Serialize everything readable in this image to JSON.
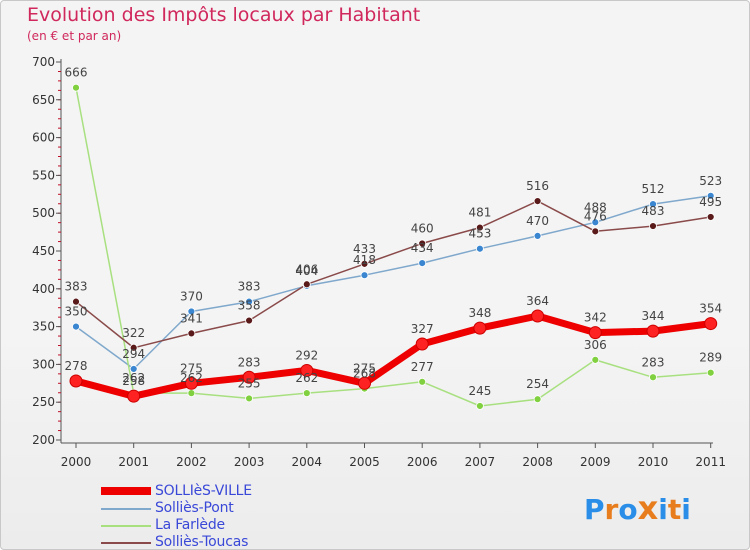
{
  "header": {
    "title": "Evolution des Impôts locaux par Habitant",
    "subtitle": "(en € et par an)"
  },
  "logo": {
    "text": "Proxiti"
  },
  "chart_data": {
    "type": "line",
    "title": "Evolution des Impôts locaux par Habitant",
    "subtitle": "(en € et par an)",
    "xlabel": "",
    "ylabel": "",
    "categories": [
      "2000",
      "2001",
      "2002",
      "2003",
      "2004",
      "2005",
      "2006",
      "2007",
      "2008",
      "2009",
      "2010",
      "2011"
    ],
    "ylim": [
      200,
      700
    ],
    "yticks": [
      "200",
      "250",
      "300",
      "350",
      "400",
      "450",
      "500",
      "550",
      "600",
      "650",
      "700"
    ],
    "grid": false,
    "legend_position": "bottom-left",
    "series": [
      {
        "name": "SOLLIèS-VILLE",
        "color": "#ee0000",
        "marker": "#ff2222",
        "width": 7,
        "radius": 6,
        "emphasis": true,
        "values": [
          278,
          258,
          275,
          283,
          292,
          275,
          327,
          348,
          364,
          342,
          344,
          354
        ],
        "labels": [
          "278",
          "258",
          "275",
          "283",
          "292",
          "275",
          "327",
          "348",
          "364",
          "342",
          "344",
          "354"
        ]
      },
      {
        "name": "Solliès-Pont",
        "color": "#7fa8cc",
        "marker": "#3a86d0",
        "width": 1.5,
        "radius": 3.5,
        "emphasis": false,
        "values": [
          350,
          294,
          370,
          383,
          404,
          418,
          434,
          453,
          470,
          488,
          512,
          523
        ],
        "labels": [
          "350",
          "294",
          "370",
          "383",
          "404",
          "418",
          "434",
          "453",
          "470",
          "488",
          "512",
          "523"
        ]
      },
      {
        "name": "La Farlède",
        "color": "#a8e080",
        "marker": "#80d040",
        "width": 1.5,
        "radius": 3.5,
        "emphasis": false,
        "values": [
          666,
          262,
          262,
          255,
          262,
          268,
          277,
          245,
          254,
          306,
          283,
          289
        ],
        "labels": [
          "666",
          "262",
          "262",
          "255",
          "262",
          "268",
          "277",
          "245",
          "254",
          "306",
          "283",
          "289"
        ]
      },
      {
        "name": "Solliès-Toucas",
        "color": "#8a4a4a",
        "marker": "#5a1a1a",
        "width": 1.5,
        "radius": 3.5,
        "emphasis": false,
        "values": [
          383,
          322,
          341,
          358,
          406,
          433,
          460,
          481,
          516,
          476,
          483,
          495
        ],
        "labels": [
          "383",
          "322",
          "341",
          "358",
          "406",
          "433",
          "460",
          "481",
          "516",
          "476",
          "483",
          "495"
        ]
      }
    ]
  }
}
